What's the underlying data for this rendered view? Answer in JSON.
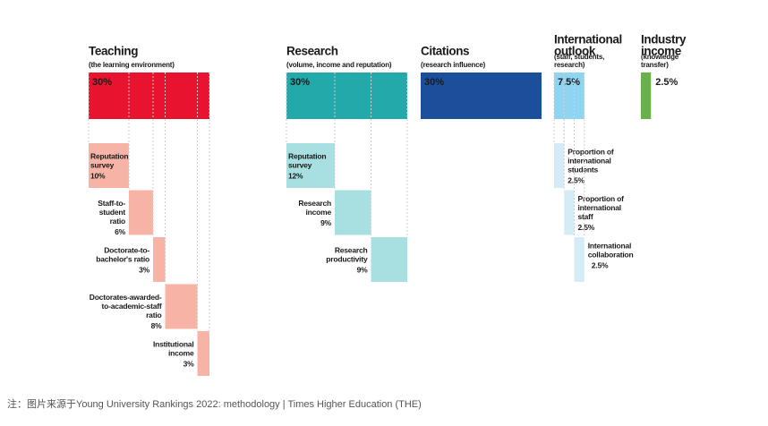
{
  "groups": [
    {
      "title": [
        "Teaching"
      ],
      "subtitle": [
        "(the learning environment)"
      ],
      "weight": 30,
      "weight_label": "30%",
      "color": "#e8132e",
      "light": "#f8b3a7",
      "label_color": "#ffffff",
      "components": [
        {
          "label": [
            "Reputation",
            "survey"
          ],
          "weight": 10,
          "weight_label": "10%"
        },
        {
          "label": [
            "Staff-to-",
            "student",
            "ratio"
          ],
          "weight": 6,
          "weight_label": "6%"
        },
        {
          "label": [
            "Doctorate-to-",
            "bachelor's ratio"
          ],
          "weight": 3,
          "weight_label": "3%"
        },
        {
          "label": [
            "Doctorates-awarded-",
            "to-academic-staff",
            "ratio"
          ],
          "weight": 8,
          "weight_label": "8%"
        },
        {
          "label": [
            "Institutional",
            "income"
          ],
          "weight": 3,
          "weight_label": "3%"
        }
      ]
    },
    {
      "title": [
        "Research"
      ],
      "subtitle": [
        "(volume, income and reputation)"
      ],
      "weight": 30,
      "weight_label": "30%",
      "color": "#24a9ab",
      "light": "#a8dfe0",
      "label_color": "#ffffff",
      "components": [
        {
          "label": [
            "Reputation",
            "survey"
          ],
          "weight": 12,
          "weight_label": "12%"
        },
        {
          "label": [
            "Research",
            "income"
          ],
          "weight": 9,
          "weight_label": "9%"
        },
        {
          "label": [
            "Research",
            "productivity"
          ],
          "weight": 9,
          "weight_label": "9%"
        }
      ]
    },
    {
      "title": [
        "Citations"
      ],
      "subtitle": [
        "(research influence)"
      ],
      "weight": 30,
      "weight_label": "30%",
      "color": "#1b4f9c",
      "light": "#1b4f9c",
      "label_color": "#ffffff",
      "components": []
    },
    {
      "title": [
        "International",
        "outlook"
      ],
      "subtitle": [
        "(staff, students,",
        "research)"
      ],
      "weight": 7.5,
      "weight_label": "7.5%",
      "color": "#8fd4f0",
      "light": "#d5ecf8",
      "label_color": "#1a1a1a",
      "components": [
        {
          "label": [
            "Proportion of",
            "international",
            "students"
          ],
          "weight": 2.5,
          "weight_label": "2.5%"
        },
        {
          "label": [
            "Proportion of",
            "international",
            "staff"
          ],
          "weight": 2.5,
          "weight_label": "2.5%"
        },
        {
          "label": [
            "International",
            "collaboration"
          ],
          "weight": 2.5,
          "weight_label": "2.5%"
        }
      ]
    },
    {
      "title": [
        "Industry",
        "income"
      ],
      "subtitle": [
        "(knowledge",
        "transfer)"
      ],
      "weight": 2.5,
      "weight_label": "2.5%",
      "color": "#6ab04c",
      "light": "#6ab04c",
      "label_color": "#1a1a1a",
      "components": []
    }
  ],
  "footnote": "注：图片来源于Young University Rankings 2022: methodology | Times Higher Education (THE)"
}
